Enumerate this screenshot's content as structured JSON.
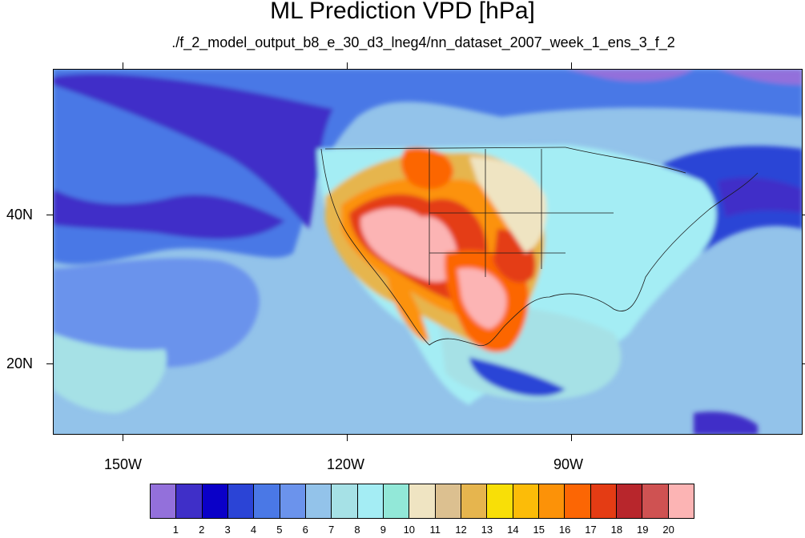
{
  "title": "ML Prediction VPD [hPa]",
  "subtitle": "./f_2_model_output_b8_e_30_d3_lneg4/nn_dataset_2007_week_1_ens_3_f_2",
  "axes": {
    "x_ticks": [
      "150W",
      "120W",
      "90W"
    ],
    "y_ticks": [
      "40N",
      "20N"
    ]
  },
  "colorbar": {
    "labels": [
      "1",
      "2",
      "3",
      "4",
      "5",
      "6",
      "7",
      "8",
      "9",
      "10",
      "11",
      "12",
      "13",
      "14",
      "15",
      "16",
      "17",
      "18",
      "19",
      "20"
    ],
    "colors": [
      "#9370db",
      "#3f2fc8",
      "#0a00c8",
      "#2b44d6",
      "#4a78e6",
      "#6b93ec",
      "#93c3ea",
      "#a6e1e6",
      "#a4edf4",
      "#92e8d8",
      "#efe4c2",
      "#dcc090",
      "#e6b54e",
      "#f8df07",
      "#fcbc08",
      "#fc9208",
      "#fc6604",
      "#e43c14",
      "#b8262c",
      "#cf5252",
      "#fcb4b4"
    ]
  },
  "map": {
    "extent_lon": [
      -160,
      -60
    ],
    "extent_lat": [
      10,
      59
    ],
    "background_level": "6"
  }
}
